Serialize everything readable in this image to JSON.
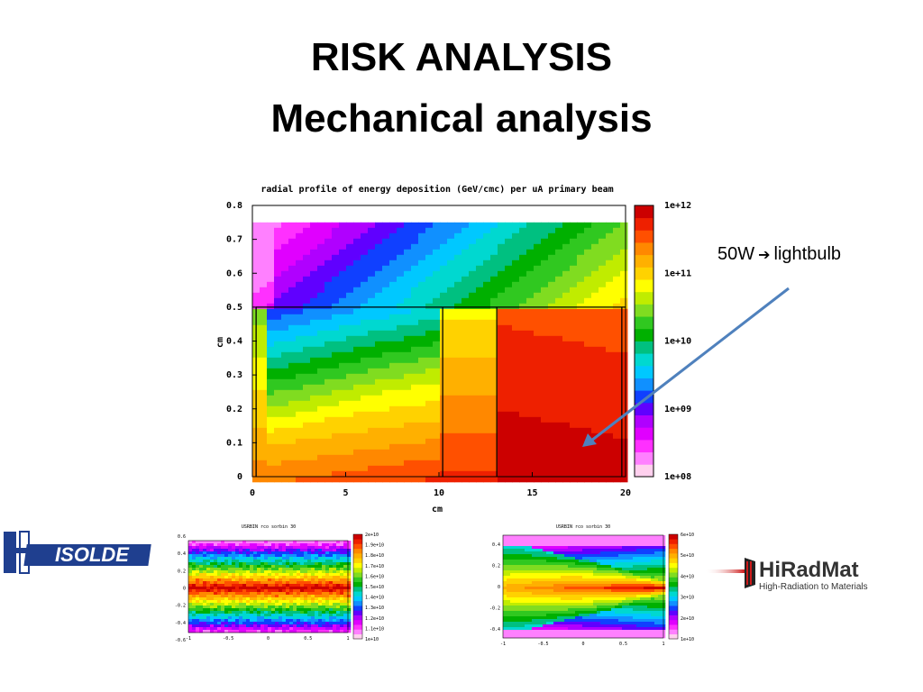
{
  "slide": {
    "title_line1": "RISK ANALYSIS",
    "title_line2": "Mechanical analysis",
    "annotation": {
      "before": "50W",
      "arrow": "➔",
      "after": "lightbulb"
    }
  },
  "colors": {
    "palette": [
      "#ffd0ee",
      "#ff80ff",
      "#ff30ff",
      "#e000ff",
      "#b000ff",
      "#6000ff",
      "#1040ff",
      "#1090ff",
      "#00c8ff",
      "#00d8d0",
      "#00c080",
      "#00b000",
      "#30c820",
      "#80dc20",
      "#c0ec00",
      "#ffff00",
      "#ffd200",
      "#ffb000",
      "#ff8800",
      "#ff5000",
      "#ee2000",
      "#cc0000",
      "#000000"
    ],
    "arrow": "#4f81bd"
  },
  "main_plot": {
    "title": "radial profile of energy deposition (GeV/cmc) per uA primary beam",
    "xlabel": "cm",
    "ylabel": "cm",
    "x_ticks": [
      "0",
      "5",
      "10",
      "15",
      "20"
    ],
    "y_ticks": [
      "0",
      "0.1",
      "0.2",
      "0.3",
      "0.4",
      "0.5",
      "0.6",
      "0.7",
      "0.8"
    ],
    "colorbar_ticks": [
      "1e+08",
      "1e+09",
      "1e+10",
      "1e+11",
      "1e+12"
    ]
  },
  "chart_data": [
    {
      "type": "heatmap",
      "title": "radial profile of energy deposition (GeV/cmc) per uA primary beam",
      "xlabel": "cm",
      "ylabel": "cm",
      "xlim": [
        0,
        20
      ],
      "ylim": [
        0,
        0.8
      ],
      "color_scale": "log",
      "color_range": [
        100000000.0,
        1000000000000.0
      ],
      "colorbar_ticks": [
        "1e+08",
        "1e+09",
        "1e+10",
        "1e+11",
        "1e+12"
      ]
    },
    {
      "type": "heatmap",
      "title": "USRBIN rco sorbin 30",
      "colorbar_ticks": [
        "1e+10",
        "1.1e+10",
        "1.2e+10",
        "1.3e+10",
        "1.4e+10",
        "1.5e+10",
        "1.6e+10",
        "1.7e+10",
        "1.8e+10",
        "1.9e+10",
        "2e+10"
      ],
      "y_ticks": [
        "-0.6",
        "-0.4",
        "-0.2",
        "0",
        "0.2",
        "0.4",
        "0.6"
      ],
      "x_ticks": [
        "-1",
        "-0.5",
        "0",
        "0.5",
        "1"
      ]
    },
    {
      "type": "heatmap",
      "title": "USRBIN rco sorbin 30",
      "colorbar_ticks": [
        "1e+10",
        "2e+10",
        "3e+10",
        "4e+10",
        "5e+10",
        "6e+10"
      ],
      "y_ticks": [
        "-0.4",
        "-0.2",
        "0",
        "0.2",
        "0.4"
      ],
      "x_ticks": [
        "-1",
        "-0.5",
        "0",
        "0.5",
        "1"
      ]
    }
  ],
  "small_plot_1": {
    "title": "USRBIN rco sorbin 30",
    "colorbar_ticks": [
      "2e+10",
      "1.9e+10",
      "1.8e+10",
      "1.7e+10",
      "1.6e+10",
      "1.5e+10",
      "1.4e+10",
      "1.3e+10",
      "1.2e+10",
      "1.1e+10",
      "1e+10"
    ],
    "y_ticks": [
      "0.6",
      "0.4",
      "0.2",
      "0",
      "-0.2",
      "-0.4",
      "-0.6"
    ],
    "x_ticks": [
      "-1",
      "-0.5",
      "0",
      "0.5",
      "1"
    ]
  },
  "small_plot_2": {
    "title": "USRBIN rco sorbin 30",
    "colorbar_ticks": [
      "6e+10",
      "5e+10",
      "4e+10",
      "3e+10",
      "2e+10",
      "1e+10"
    ],
    "y_ticks": [
      "0.4",
      "0.2",
      "0",
      "-0.2",
      "-0.4"
    ],
    "x_ticks": [
      "-1",
      "-0.5",
      "0",
      "0.5",
      "1"
    ]
  },
  "logos": {
    "isolde": "ISOLDE",
    "hiradmat_name": "HiRadMat",
    "hiradmat_tagline": "High-Radiation to Materials"
  }
}
